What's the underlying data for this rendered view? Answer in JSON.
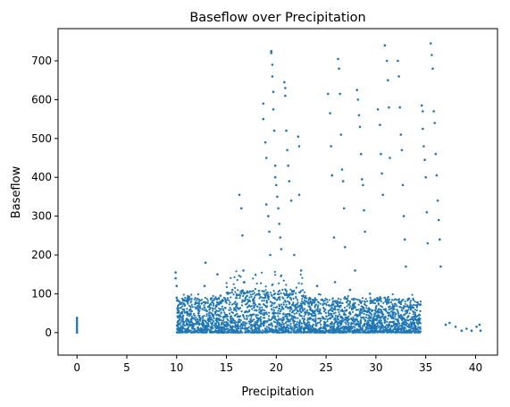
{
  "chart_data": {
    "type": "scatter",
    "title": "Baseflow over Precipitation",
    "xlabel": "Precipitation",
    "ylabel": "Baseflow",
    "xlim": [
      -1.9,
      42.2
    ],
    "ylim": [
      -58,
      783
    ],
    "xticks": [
      "0",
      "5",
      "10",
      "15",
      "20",
      "25",
      "30",
      "35",
      "40"
    ],
    "yticks": [
      "0",
      "100",
      "200",
      "300",
      "400",
      "500",
      "600",
      "700"
    ],
    "grid": false,
    "legend": "none",
    "marker_color": "#1f77b4",
    "series": [
      {
        "points": [
          [
            0,
            0
          ],
          [
            0,
            5
          ],
          [
            0,
            10
          ],
          [
            0,
            15
          ],
          [
            0,
            20
          ],
          [
            0,
            25
          ],
          [
            0,
            30
          ],
          [
            0,
            35
          ],
          [
            0,
            38
          ],
          [
            9.9,
            155
          ],
          [
            9.9,
            140
          ],
          [
            10,
            120
          ],
          [
            10,
            90
          ],
          [
            10.1,
            60
          ],
          [
            10.2,
            30
          ],
          [
            10.3,
            10
          ],
          [
            11,
            35
          ],
          [
            11.4,
            60
          ],
          [
            11.2,
            90
          ],
          [
            11.6,
            20
          ],
          [
            12.2,
            50
          ],
          [
            12.5,
            75
          ],
          [
            12.9,
            180
          ],
          [
            12.8,
            120
          ],
          [
            13.2,
            30
          ],
          [
            13.5,
            10
          ],
          [
            14.1,
            150
          ],
          [
            14.4,
            95
          ],
          [
            14.8,
            40
          ],
          [
            15.6,
            110
          ],
          [
            15.9,
            60
          ],
          [
            16.3,
            355
          ],
          [
            16.5,
            320
          ],
          [
            16.6,
            250
          ],
          [
            16.7,
            160
          ],
          [
            16.8,
            130
          ],
          [
            17.2,
            80
          ],
          [
            17.6,
            30
          ],
          [
            17.9,
            10
          ],
          [
            18.7,
            590
          ],
          [
            18.7,
            550
          ],
          [
            18.9,
            490
          ],
          [
            19.0,
            450
          ],
          [
            19.0,
            330
          ],
          [
            19.2,
            300
          ],
          [
            19.3,
            260
          ],
          [
            19.4,
            200
          ],
          [
            19.5,
            725
          ],
          [
            19.5,
            720
          ],
          [
            19.6,
            690
          ],
          [
            19.6,
            660
          ],
          [
            19.7,
            620
          ],
          [
            19.7,
            575
          ],
          [
            19.8,
            520
          ],
          [
            19.9,
            430
          ],
          [
            19.9,
            400
          ],
          [
            20.0,
            380
          ],
          [
            20.1,
            350
          ],
          [
            20.2,
            320
          ],
          [
            20.3,
            280
          ],
          [
            20.4,
            245
          ],
          [
            20.5,
            215
          ],
          [
            20.8,
            645
          ],
          [
            20.9,
            630
          ],
          [
            20.9,
            610
          ],
          [
            21.0,
            520
          ],
          [
            21.1,
            470
          ],
          [
            21.2,
            430
          ],
          [
            21.3,
            390
          ],
          [
            21.5,
            340
          ],
          [
            21.8,
            200
          ],
          [
            22.2,
            505
          ],
          [
            22.3,
            480
          ],
          [
            22.3,
            355
          ],
          [
            22.5,
            160
          ],
          [
            22.9,
            90
          ],
          [
            23.4,
            60
          ],
          [
            24.1,
            120
          ],
          [
            24.6,
            85
          ],
          [
            25.2,
            615
          ],
          [
            25.4,
            565
          ],
          [
            25.5,
            480
          ],
          [
            25.6,
            405
          ],
          [
            25.8,
            245
          ],
          [
            25.9,
            130
          ],
          [
            26.2,
            705
          ],
          [
            26.3,
            680
          ],
          [
            26.4,
            615
          ],
          [
            26.5,
            510
          ],
          [
            26.6,
            420
          ],
          [
            26.7,
            390
          ],
          [
            26.8,
            320
          ],
          [
            26.9,
            220
          ],
          [
            27.4,
            110
          ],
          [
            27.9,
            160
          ],
          [
            28.1,
            625
          ],
          [
            28.2,
            600
          ],
          [
            28.3,
            560
          ],
          [
            28.4,
            530
          ],
          [
            28.5,
            460
          ],
          [
            28.6,
            395
          ],
          [
            28.7,
            380
          ],
          [
            28.8,
            315
          ],
          [
            28.9,
            260
          ],
          [
            29.4,
            100
          ],
          [
            29.9,
            85
          ],
          [
            30.2,
            575
          ],
          [
            30.4,
            535
          ],
          [
            30.5,
            460
          ],
          [
            30.6,
            410
          ],
          [
            30.7,
            355
          ],
          [
            30.9,
            740
          ],
          [
            31.1,
            700
          ],
          [
            31.2,
            650
          ],
          [
            31.3,
            580
          ],
          [
            31.4,
            450
          ],
          [
            32.2,
            700
          ],
          [
            32.3,
            660
          ],
          [
            32.4,
            580
          ],
          [
            32.5,
            510
          ],
          [
            32.6,
            470
          ],
          [
            32.7,
            380
          ],
          [
            32.8,
            300
          ],
          [
            32.9,
            240
          ],
          [
            33.0,
            170
          ],
          [
            33.5,
            65
          ],
          [
            33.9,
            40
          ],
          [
            34.3,
            30
          ],
          [
            34.6,
            585
          ],
          [
            34.7,
            570
          ],
          [
            34.7,
            525
          ],
          [
            34.8,
            480
          ],
          [
            34.9,
            445
          ],
          [
            35.0,
            400
          ],
          [
            35.1,
            310
          ],
          [
            35.2,
            230
          ],
          [
            35.5,
            745
          ],
          [
            35.6,
            715
          ],
          [
            35.7,
            680
          ],
          [
            35.8,
            570
          ],
          [
            35.9,
            540
          ],
          [
            36.0,
            460
          ],
          [
            36.1,
            405
          ],
          [
            36.2,
            340
          ],
          [
            36.3,
            290
          ],
          [
            36.4,
            240
          ],
          [
            36.5,
            170
          ],
          [
            37.0,
            20
          ],
          [
            37.4,
            25
          ],
          [
            38.0,
            15
          ],
          [
            38.6,
            5
          ],
          [
            39.1,
            10
          ],
          [
            39.6,
            5
          ],
          [
            40.1,
            15
          ],
          [
            40.4,
            20
          ],
          [
            40.5,
            5
          ]
        ]
      }
    ]
  }
}
